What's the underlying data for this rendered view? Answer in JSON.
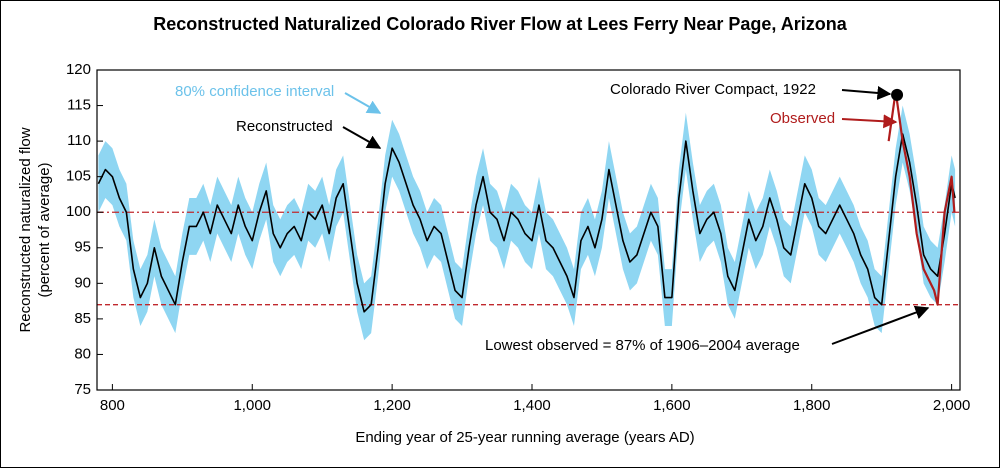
{
  "chart_data": {
    "type": "line",
    "title": "Reconstructed Naturalized Colorado River Flow at Lees Ferry Near Page, Arizona",
    "xlabel": "Ending year of 25-year running average (years AD)",
    "ylabel": [
      "Reconstructed naturalized flow",
      "(percent of average)"
    ],
    "x": [
      780,
      790,
      800,
      810,
      820,
      830,
      840,
      850,
      860,
      870,
      880,
      890,
      900,
      910,
      920,
      930,
      940,
      950,
      960,
      970,
      980,
      990,
      1000,
      1010,
      1020,
      1030,
      1040,
      1050,
      1060,
      1070,
      1080,
      1090,
      1100,
      1110,
      1120,
      1130,
      1140,
      1150,
      1160,
      1170,
      1180,
      1190,
      1200,
      1210,
      1220,
      1230,
      1240,
      1250,
      1260,
      1270,
      1280,
      1290,
      1300,
      1310,
      1320,
      1330,
      1340,
      1350,
      1360,
      1370,
      1380,
      1390,
      1400,
      1410,
      1420,
      1430,
      1440,
      1450,
      1460,
      1470,
      1480,
      1490,
      1500,
      1510,
      1520,
      1530,
      1540,
      1550,
      1560,
      1570,
      1580,
      1590,
      1600,
      1610,
      1620,
      1630,
      1640,
      1650,
      1660,
      1670,
      1680,
      1690,
      1700,
      1710,
      1720,
      1730,
      1740,
      1750,
      1760,
      1770,
      1780,
      1790,
      1800,
      1810,
      1820,
      1830,
      1840,
      1850,
      1860,
      1870,
      1880,
      1890,
      1900,
      1910,
      1920,
      1930,
      1940,
      1950,
      1960,
      1970,
      1980,
      1990,
      2000,
      2005
    ],
    "series": [
      {
        "name": "Reconstructed",
        "color": "#000000",
        "values": [
          104,
          106,
          105,
          102,
          100,
          92,
          88,
          90,
          95,
          91,
          89,
          87,
          93,
          98,
          98,
          100,
          97,
          101,
          99,
          97,
          101,
          98,
          96,
          100,
          103,
          97,
          95,
          97,
          98,
          96,
          100,
          99,
          101,
          97,
          102,
          104,
          97,
          90,
          86,
          87,
          95,
          104,
          109,
          107,
          104,
          101,
          99,
          96,
          98,
          97,
          93,
          89,
          88,
          95,
          101,
          105,
          100,
          99,
          96,
          100,
          99,
          97,
          96,
          101,
          96,
          95,
          93,
          91,
          88,
          96,
          98,
          95,
          99,
          106,
          101,
          96,
          93,
          94,
          97,
          100,
          98,
          88,
          88,
          102,
          110,
          103,
          97,
          99,
          100,
          97,
          91,
          89,
          94,
          99,
          96,
          98,
          102,
          99,
          95,
          94,
          99,
          104,
          102,
          98,
          97,
          99,
          101,
          99,
          97,
          94,
          92,
          88,
          87,
          96,
          105,
          111,
          107,
          101,
          94,
          92,
          91,
          97,
          104,
          102
        ]
      },
      {
        "name": "Observed",
        "color": "#b01c1c",
        "x": [
          1910,
          1920,
          1930,
          1940,
          1950,
          1960,
          1970,
          1975,
          1980,
          1990,
          2000,
          2004
        ],
        "values": [
          110,
          117,
          110,
          105,
          97,
          92,
          90,
          89,
          87,
          100,
          105,
          100
        ]
      }
    ],
    "band": {
      "name": "80% confidence interval",
      "color": "#8fd6f2",
      "lower": [
        100,
        102,
        101,
        98,
        96,
        88,
        84,
        86,
        91,
        87,
        85,
        83,
        89,
        94,
        94,
        96,
        93,
        97,
        95,
        93,
        97,
        94,
        92,
        96,
        99,
        93,
        91,
        93,
        94,
        92,
        96,
        95,
        97,
        93,
        98,
        100,
        93,
        86,
        82,
        83,
        91,
        100,
        105,
        103,
        100,
        97,
        95,
        92,
        94,
        93,
        89,
        85,
        84,
        91,
        97,
        101,
        96,
        95,
        92,
        96,
        95,
        93,
        92,
        97,
        92,
        91,
        89,
        87,
        84,
        92,
        94,
        91,
        95,
        102,
        97,
        92,
        89,
        90,
        93,
        96,
        94,
        84,
        84,
        98,
        106,
        99,
        93,
        95,
        96,
        93,
        87,
        85,
        90,
        95,
        92,
        94,
        98,
        95,
        91,
        90,
        95,
        100,
        98,
        94,
        93,
        95,
        97,
        95,
        93,
        90,
        88,
        84,
        83,
        92,
        101,
        107,
        103,
        97,
        90,
        88,
        87,
        93,
        100,
        98
      ],
      "upper": [
        108,
        110,
        109,
        106,
        104,
        96,
        92,
        94,
        99,
        95,
        93,
        91,
        97,
        102,
        102,
        104,
        101,
        105,
        103,
        101,
        105,
        102,
        100,
        104,
        107,
        101,
        99,
        101,
        102,
        100,
        104,
        103,
        105,
        101,
        106,
        108,
        101,
        94,
        90,
        91,
        99,
        108,
        113,
        111,
        108,
        105,
        103,
        100,
        102,
        101,
        97,
        93,
        92,
        99,
        105,
        109,
        104,
        103,
        100,
        104,
        103,
        101,
        100,
        105,
        100,
        99,
        97,
        95,
        92,
        100,
        102,
        99,
        103,
        110,
        105,
        100,
        97,
        98,
        101,
        104,
        102,
        92,
        92,
        106,
        114,
        107,
        101,
        103,
        104,
        101,
        95,
        93,
        98,
        103,
        100,
        102,
        106,
        103,
        99,
        98,
        103,
        108,
        106,
        102,
        101,
        103,
        105,
        103,
        101,
        98,
        96,
        92,
        91,
        100,
        109,
        115,
        111,
        105,
        98,
        96,
        95,
        101,
        108,
        106
      ]
    },
    "reference_lines": [
      {
        "value": 100,
        "style": "dashdot"
      },
      {
        "value": 87,
        "style": "dashed"
      }
    ],
    "reference_color": "#c0282d",
    "annotations": [
      {
        "text": "Colorado River Compact, 1922",
        "x": 1922,
        "y": 116.5
      },
      {
        "text": "Lowest observed = 87% of 1906–2004 average"
      }
    ],
    "xlim": [
      778,
      2012
    ],
    "ylim": [
      75,
      120
    ],
    "xticks": [
      800,
      {
        "value": 1000,
        "label": "1,000"
      },
      {
        "value": 1200,
        "label": "1,200"
      },
      {
        "value": 1400,
        "label": "1,400"
      },
      {
        "value": 1600,
        "label": "1,600"
      },
      {
        "value": 1800,
        "label": "1,800"
      },
      {
        "value": 2000,
        "label": "2,000"
      }
    ],
    "yticks": [
      75,
      80,
      85,
      90,
      95,
      100,
      105,
      110,
      115,
      120
    ]
  }
}
